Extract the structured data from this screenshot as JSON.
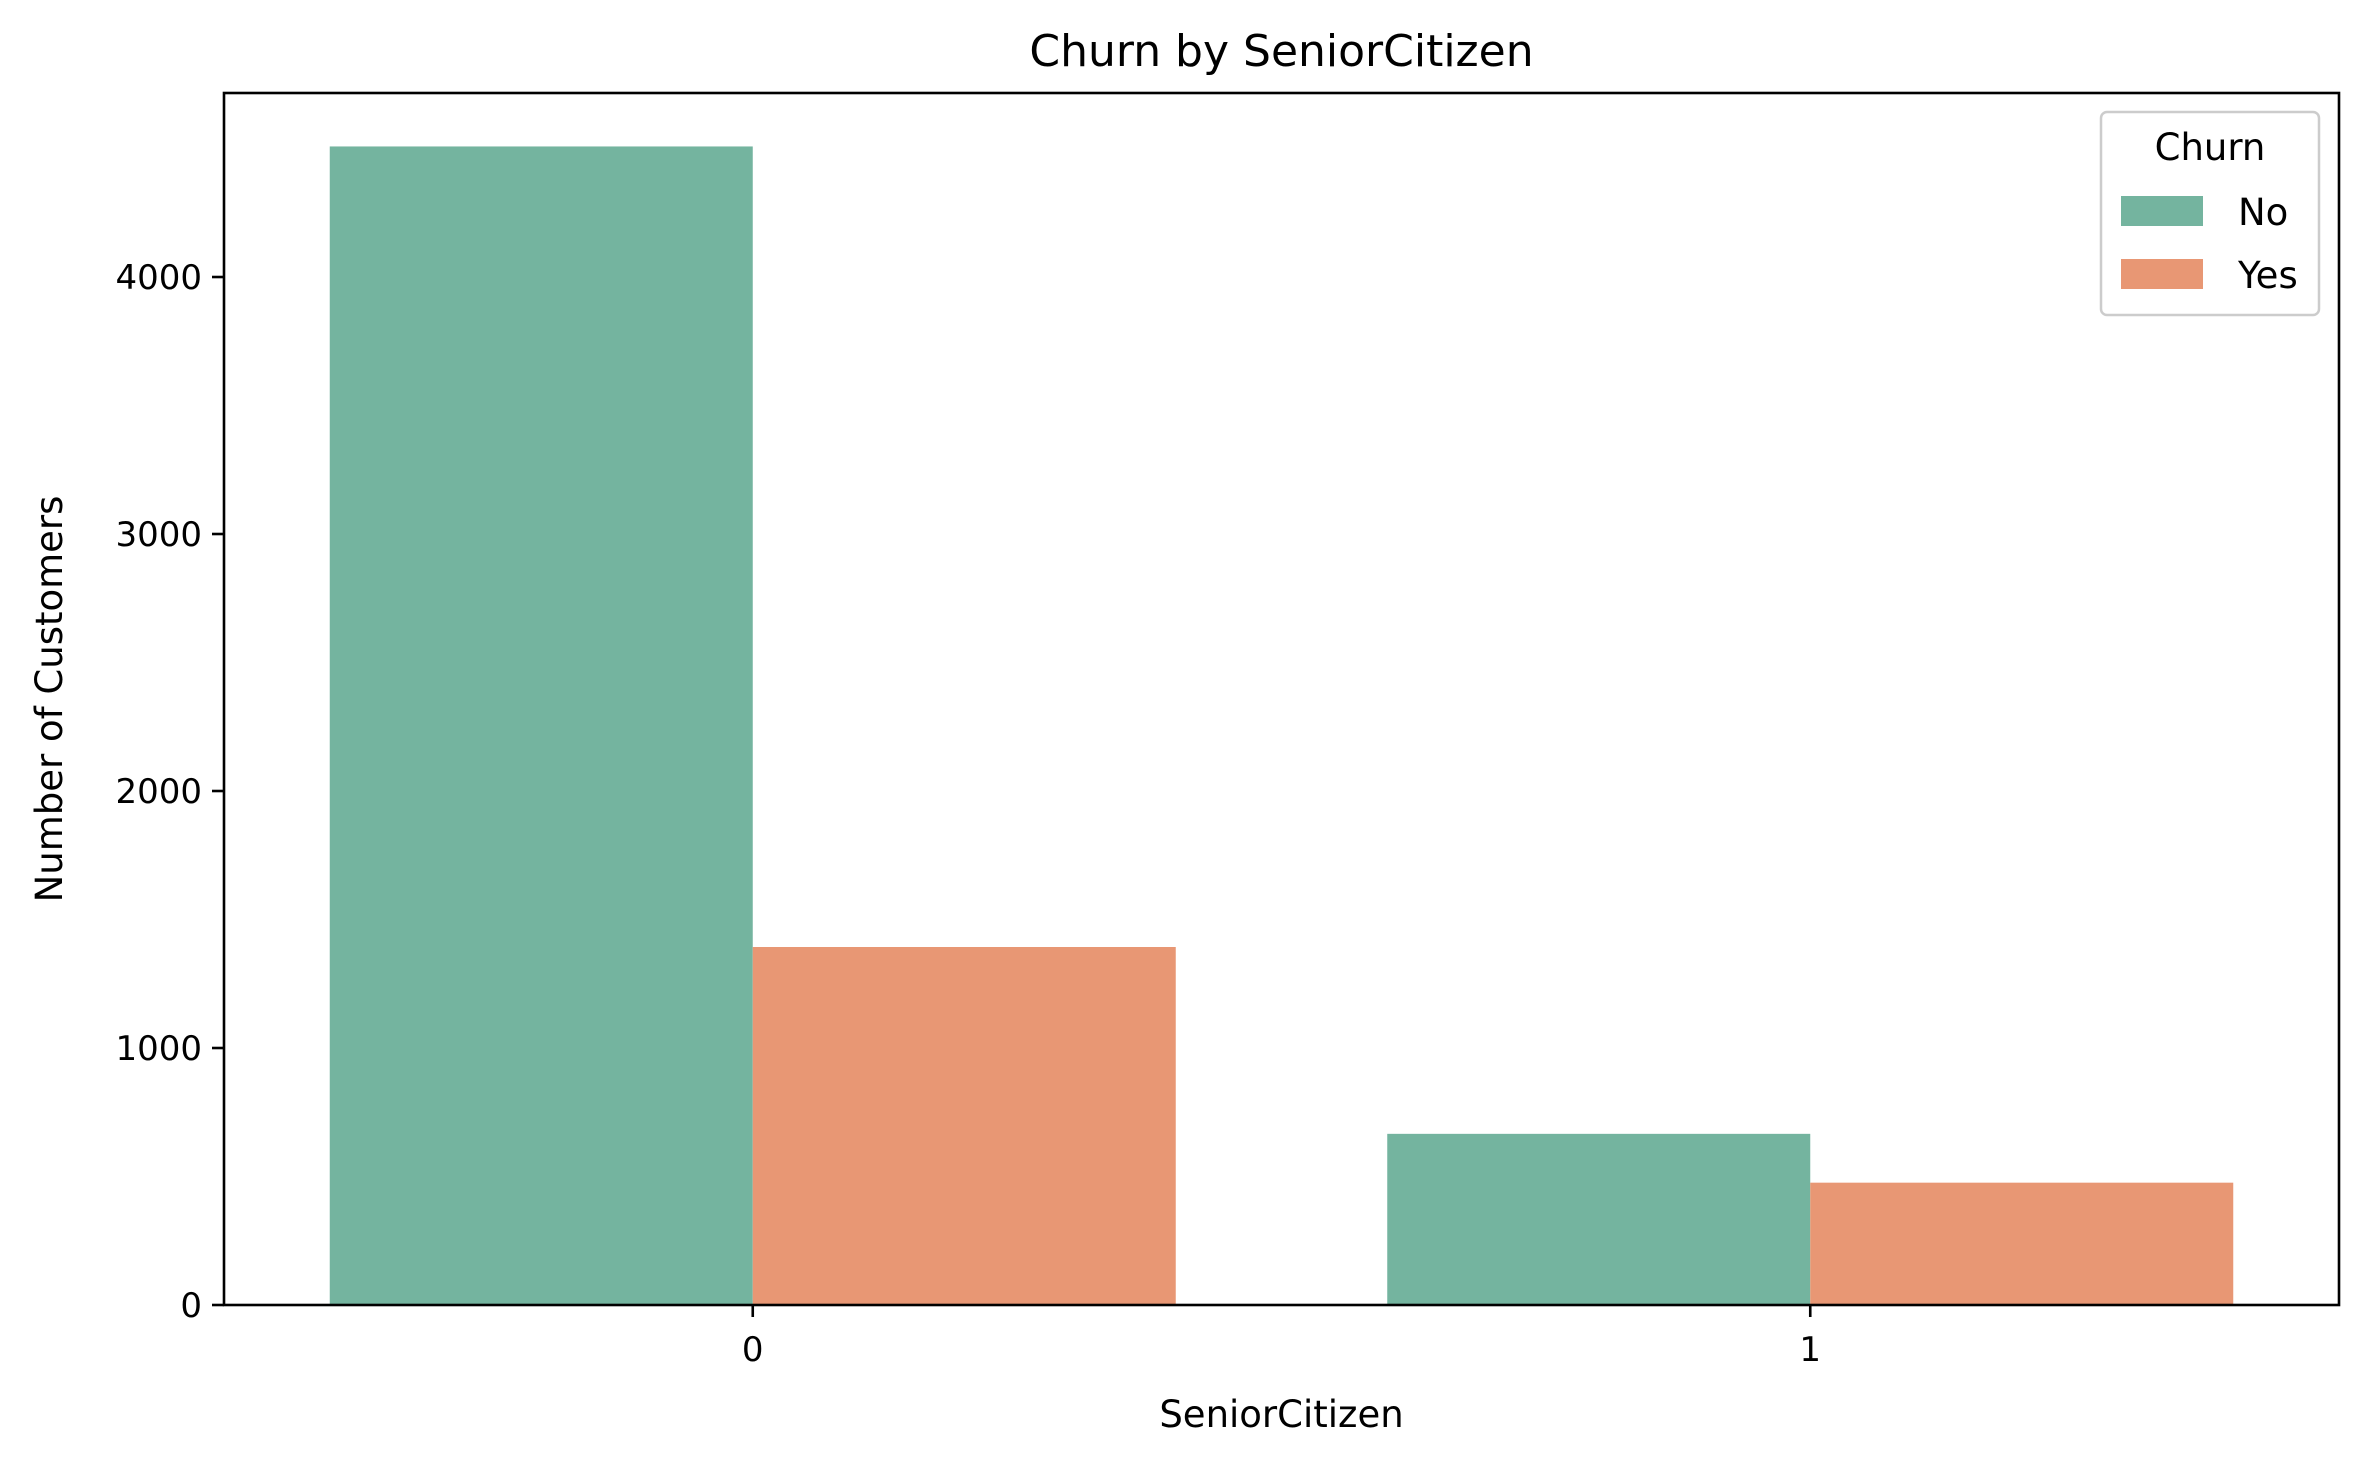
{
  "chart_data": {
    "type": "bar",
    "title": "Churn by SeniorCitizen",
    "xlabel": "SeniorCitizen",
    "ylabel": "Number of Customers",
    "categories": [
      "0",
      "1"
    ],
    "series": [
      {
        "name": "No",
        "color": "#74b49f",
        "values": [
          4508,
          666
        ]
      },
      {
        "name": "Yes",
        "color": "#e89774",
        "values": [
          1393,
          476
        ]
      }
    ],
    "ylim": [
      0,
      4716
    ],
    "yticks": [
      0,
      1000,
      2000,
      3000,
      4000
    ],
    "legend": {
      "title": "Churn",
      "placement": "top-right"
    },
    "grid": false
  }
}
